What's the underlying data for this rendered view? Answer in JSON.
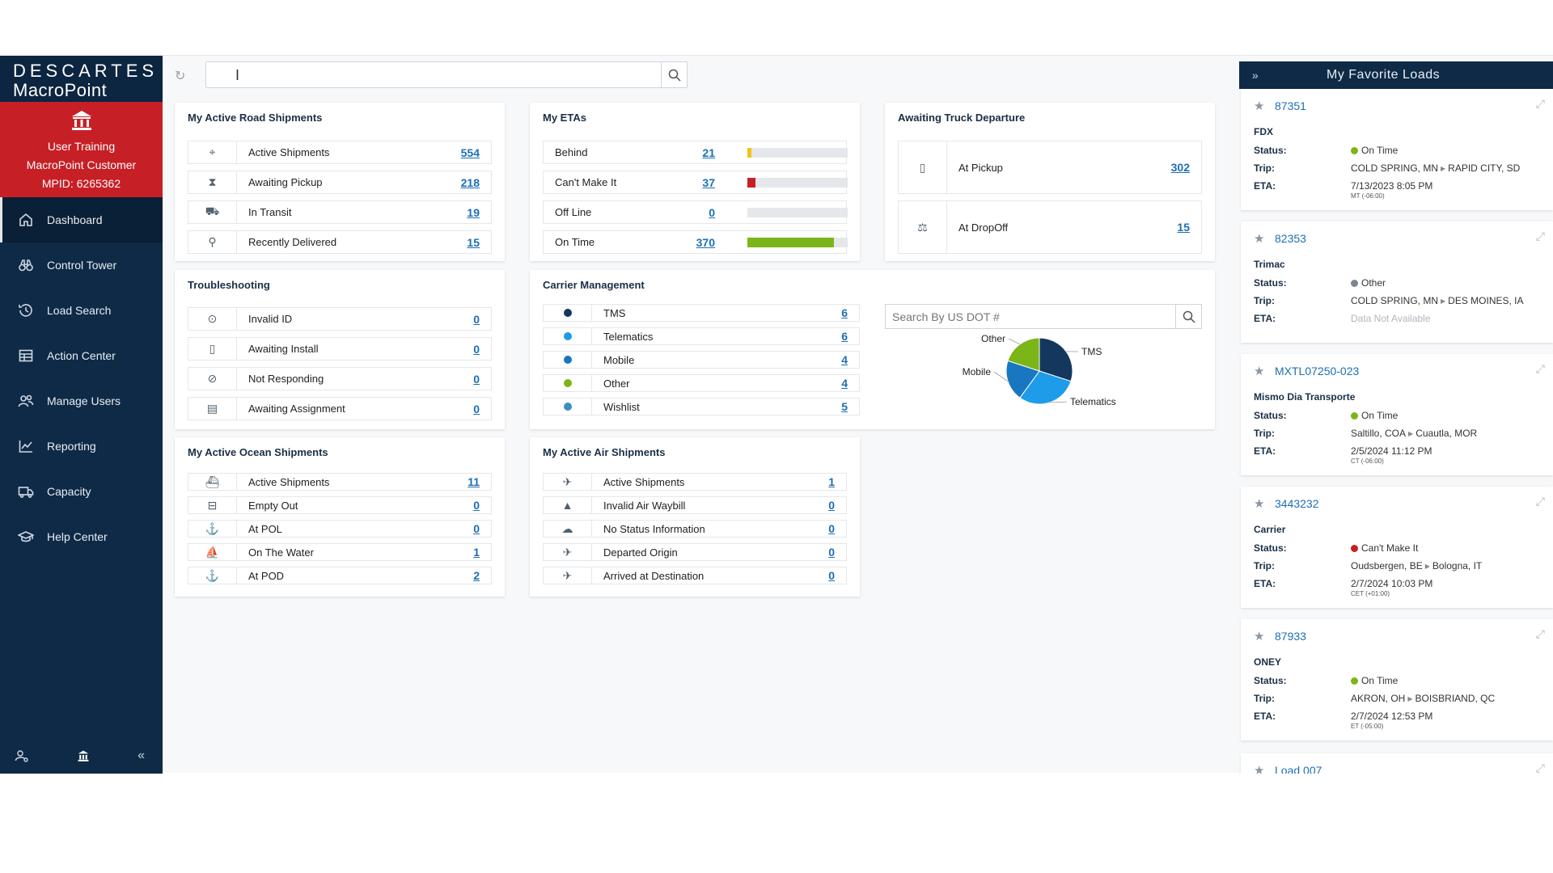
{
  "brand": {
    "line1": "DESCARTES",
    "line2": "MacroPoint"
  },
  "user": {
    "name": "User Training",
    "company": "MacroPoint Customer",
    "mpid": "MPID: 6265362"
  },
  "nav": [
    {
      "label": "Dashboard",
      "icon": "home-icon"
    },
    {
      "label": "Control Tower",
      "icon": "binoculars-icon"
    },
    {
      "label": "Load Search",
      "icon": "history-icon"
    },
    {
      "label": "Action Center",
      "icon": "table-icon"
    },
    {
      "label": "Manage Users",
      "icon": "users-icon"
    },
    {
      "label": "Reporting",
      "icon": "line-chart-icon"
    },
    {
      "label": "Capacity",
      "icon": "truck-icon"
    },
    {
      "label": "Help Center",
      "icon": "graduation-cap-icon"
    }
  ],
  "colors": {
    "sidebar": "#0e2a47",
    "user_block": "#c62026",
    "link": "#1c6fb5",
    "on_time": "#7cb518",
    "cant_make_it": "#c62026",
    "behind": "#f2c318",
    "other": "#7a8694"
  },
  "road": {
    "title": "My Active Road Shipments",
    "rows": [
      {
        "label": "Active Shipments",
        "value": "554",
        "icon": "map-pin-icon"
      },
      {
        "label": "Awaiting Pickup",
        "value": "218",
        "icon": "hourglass-icon"
      },
      {
        "label": "In Transit",
        "value": "19",
        "icon": "truck-icon"
      },
      {
        "label": "Recently Delivered",
        "value": "15",
        "icon": "hand-truck-icon"
      }
    ]
  },
  "etas": {
    "title": "My ETAs",
    "rows": [
      {
        "label": "Behind",
        "value": "21",
        "fill": 0.04,
        "color": "#f2c318"
      },
      {
        "label": "Can't Make It",
        "value": "37",
        "fill": 0.08,
        "color": "#c62026"
      },
      {
        "label": "Off Line",
        "value": "0",
        "fill": 0,
        "color": "#7a8694"
      },
      {
        "label": "On Time",
        "value": "370",
        "fill": 0.86,
        "color": "#7cb518"
      }
    ]
  },
  "departure": {
    "title": "Awaiting Truck Departure",
    "rows": [
      {
        "label": "At Pickup",
        "value": "302",
        "icon": "bookmark-icon"
      },
      {
        "label": "At DropOff",
        "value": "15",
        "icon": "dolly-icon"
      }
    ]
  },
  "troubleshooting": {
    "title": "Troubleshooting",
    "rows": [
      {
        "label": "Invalid ID",
        "value": "0",
        "icon": "target-icon"
      },
      {
        "label": "Awaiting Install",
        "value": "0",
        "icon": "phone-icon"
      },
      {
        "label": "Not Responding",
        "value": "0",
        "icon": "no-signal-icon"
      },
      {
        "label": "Awaiting Assignment",
        "value": "0",
        "icon": "assignment-icon"
      }
    ]
  },
  "carrier": {
    "title": "Carrier Management",
    "rows": [
      {
        "label": "TMS",
        "value": "6",
        "color": "#14375e"
      },
      {
        "label": "Telematics",
        "value": "6",
        "color": "#1e9be9"
      },
      {
        "label": "Mobile",
        "value": "4",
        "color": "#1877c0"
      },
      {
        "label": "Other",
        "value": "4",
        "color": "#7cb518"
      },
      {
        "label": "Wishlist",
        "value": "5",
        "color": "#3a8fc4"
      }
    ],
    "search_placeholder": "Search By US DOT #"
  },
  "chart_data": {
    "type": "pie",
    "labels": [
      "TMS",
      "Telematics",
      "Mobile",
      "Other"
    ],
    "values": [
      6,
      6,
      4,
      4
    ],
    "colors": [
      "#14375e",
      "#1e9be9",
      "#1877c0",
      "#7cb518"
    ]
  },
  "ocean": {
    "title": "My Active Ocean Shipments",
    "rows": [
      {
        "label": "Active Shipments",
        "value": "11",
        "icon": "ship-icon"
      },
      {
        "label": "Empty Out",
        "value": "0",
        "icon": "container-icon"
      },
      {
        "label": "At POL",
        "value": "0",
        "icon": "anchor-icon"
      },
      {
        "label": "On The Water",
        "value": "1",
        "icon": "ferry-icon"
      },
      {
        "label": "At POD",
        "value": "2",
        "icon": "anchor-dock-icon"
      }
    ]
  },
  "air": {
    "title": "My Active Air Shipments",
    "rows": [
      {
        "label": "Active Shipments",
        "value": "1",
        "icon": "plane-icon"
      },
      {
        "label": "Invalid Air Waybill",
        "value": "0",
        "icon": "warning-icon"
      },
      {
        "label": "No Status Information",
        "value": "0",
        "icon": "cloud-icon"
      },
      {
        "label": "Departed Origin",
        "value": "0",
        "icon": "takeoff-icon"
      },
      {
        "label": "Arrived at Destination",
        "value": "0",
        "icon": "landing-icon"
      }
    ]
  },
  "favorites": {
    "title": "My Favorite Loads",
    "labels": {
      "status": "Status:",
      "trip": "Trip:",
      "eta": "ETA:"
    },
    "loads": [
      {
        "id": "87351",
        "carrier": "FDX",
        "status": "On Time",
        "status_color": "#7cb518",
        "from": "COLD SPRING, MN",
        "to": "RAPID CITY, SD",
        "eta": "7/13/2023  8:05 PM",
        "tz": "MT (-06:00)"
      },
      {
        "id": "82353",
        "carrier": "Trimac",
        "status": "Other",
        "status_color": "#7a8694",
        "from": "COLD SPRING, MN",
        "to": "DES MOINES, IA",
        "eta": "Data Not Available",
        "tz": ""
      },
      {
        "id": "MXTL07250-023",
        "carrier": "Mismo Dia Transporte",
        "status": "On Time",
        "status_color": "#7cb518",
        "from": "Saltillo, COA",
        "to": "Cuautla, MOR",
        "eta": "2/5/2024  11:12 PM",
        "tz": "CT (-06:00)"
      },
      {
        "id": "3443232",
        "carrier": "Carrier",
        "status": "Can't Make It",
        "status_color": "#c62026",
        "from": "Oudsbergen, BE",
        "to": "Bologna, IT",
        "eta": "2/7/2024  10:03 PM",
        "tz": "CET (+01:00)"
      },
      {
        "id": "87933",
        "carrier": "ONEY",
        "status": "On Time",
        "status_color": "#7cb518",
        "from": "AKRON, OH",
        "to": "BOISBRIAND, QC",
        "eta": "2/7/2024  12:53 PM",
        "tz": "ET (-05:00)"
      },
      {
        "id": "Load 007"
      }
    ]
  }
}
